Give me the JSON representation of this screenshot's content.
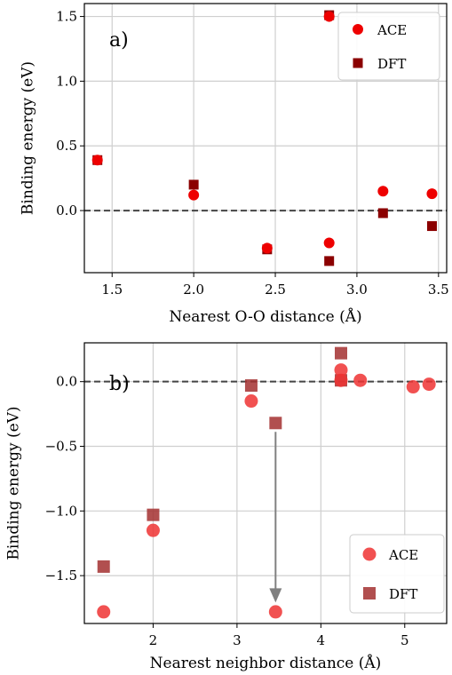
{
  "colors": {
    "ace_top": "#ee0000",
    "dft_top": "#8b0000",
    "ace_bottom": "#ee3333",
    "dft_bottom": "#a33030",
    "grid": "#cfcfcf",
    "reference_line": "#444444",
    "arrow": "#808080"
  },
  "chart_data": [
    {
      "type": "scatter",
      "panel_label": "a)",
      "xlabel": "Nearest O-O distance (Å)",
      "ylabel": "Binding energy (eV)",
      "xlim": [
        1.33,
        3.55
      ],
      "ylim": [
        -0.48,
        1.6
      ],
      "xticks": [
        1.5,
        2.0,
        2.5,
        3.0,
        3.5
      ],
      "xtick_labels": [
        "1.5",
        "2.0",
        "2.5",
        "3.0",
        "3.5"
      ],
      "yticks": [
        0.0,
        0.5,
        1.0,
        1.5
      ],
      "ytick_labels": [
        "0.0",
        "0.5",
        "1.0",
        "1.5"
      ],
      "grid": true,
      "reference_line_y": 0.0,
      "legend_position": "top-right",
      "series": [
        {
          "name": "ACE",
          "marker": "circle",
          "color_key": "ace_top",
          "points": [
            [
              1.41,
              0.39
            ],
            [
              2.0,
              0.12
            ],
            [
              2.45,
              -0.29
            ],
            [
              2.83,
              -0.25
            ],
            [
              2.83,
              1.5
            ],
            [
              3.16,
              0.15
            ],
            [
              3.46,
              0.13
            ]
          ]
        },
        {
          "name": "DFT",
          "marker": "square",
          "color_key": "dft_top",
          "points": [
            [
              1.41,
              0.39
            ],
            [
              2.0,
              0.2
            ],
            [
              2.45,
              -0.3
            ],
            [
              2.83,
              -0.39
            ],
            [
              2.83,
              1.51
            ],
            [
              3.16,
              -0.02
            ],
            [
              3.46,
              -0.12
            ]
          ]
        }
      ]
    },
    {
      "type": "scatter",
      "panel_label": "b)",
      "xlabel": "Nearest neighbor distance (Å)",
      "ylabel": "Binding energy (eV)",
      "xlim": [
        1.18,
        5.5
      ],
      "ylim": [
        -1.87,
        0.3
      ],
      "xticks": [
        2,
        3,
        4,
        5
      ],
      "xtick_labels": [
        "2",
        "3",
        "4",
        "5"
      ],
      "yticks": [
        -1.5,
        -1.0,
        -0.5,
        0.0
      ],
      "ytick_labels": [
        "−1.5",
        "−1.0",
        "−0.5",
        "0.0"
      ],
      "grid": true,
      "reference_line_y": 0.0,
      "legend_position": "bottom-right",
      "arrow": {
        "from": [
          3.46,
          -0.32
        ],
        "to": [
          3.46,
          -1.68
        ]
      },
      "series": [
        {
          "name": "ACE",
          "marker": "circle",
          "color_key": "ace_bottom",
          "points": [
            [
              1.41,
              -1.78
            ],
            [
              2.0,
              -1.15
            ],
            [
              3.17,
              -0.15
            ],
            [
              3.46,
              -1.78
            ],
            [
              4.24,
              0.09
            ],
            [
              4.24,
              0.01
            ],
            [
              4.47,
              0.01
            ],
            [
              5.1,
              -0.04
            ],
            [
              5.29,
              -0.02
            ]
          ]
        },
        {
          "name": "DFT",
          "marker": "square",
          "color_key": "dft_bottom",
          "points": [
            [
              1.41,
              -1.43
            ],
            [
              2.0,
              -1.03
            ],
            [
              3.17,
              -0.03
            ],
            [
              3.46,
              -0.32
            ],
            [
              4.24,
              0.22
            ],
            [
              4.24,
              0.01
            ]
          ]
        }
      ]
    }
  ]
}
